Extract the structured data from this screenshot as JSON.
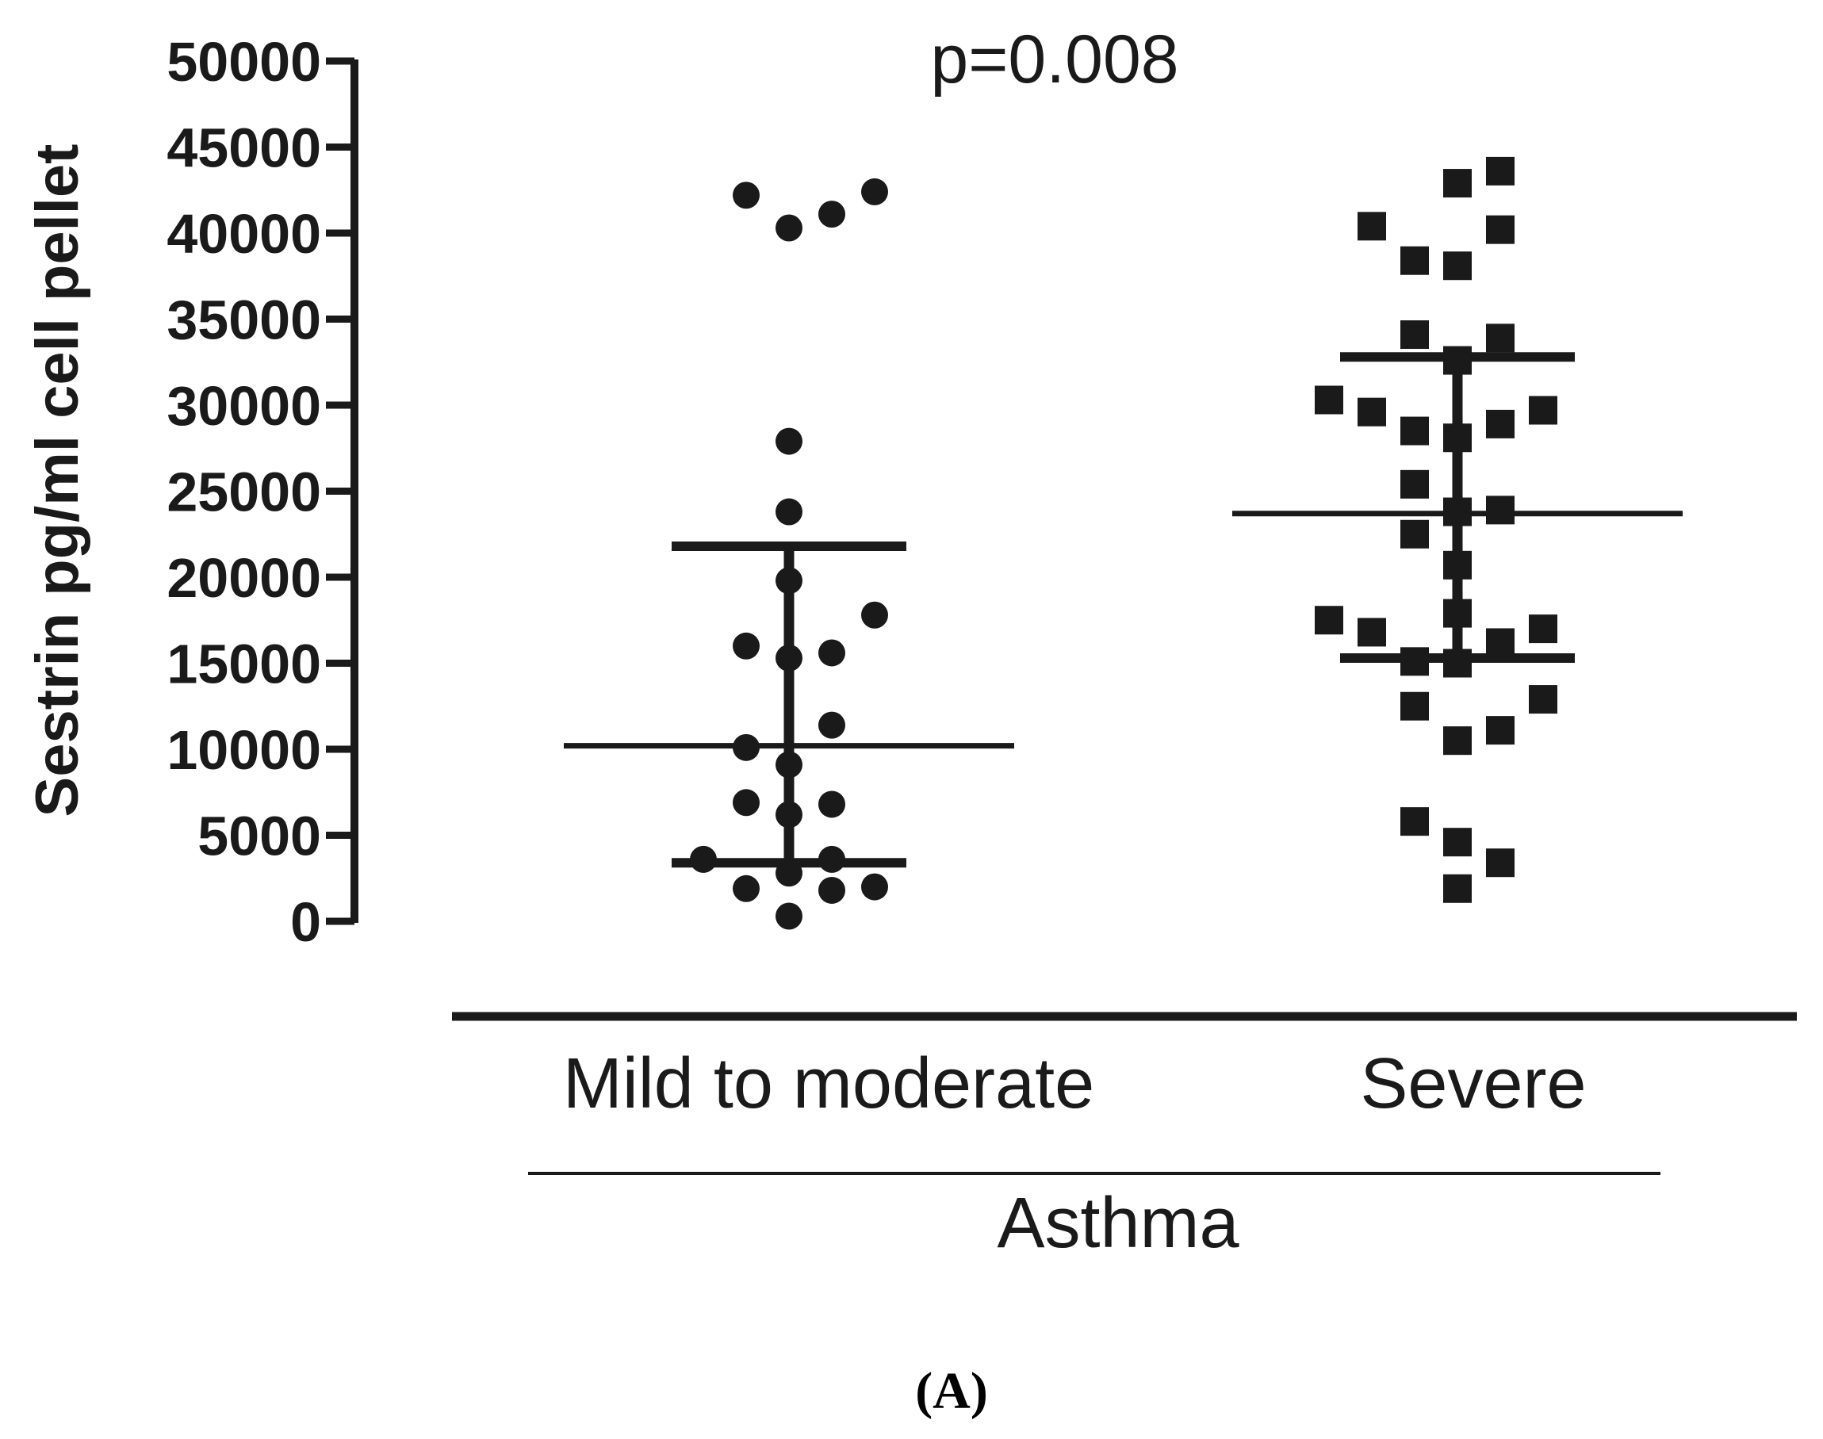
{
  "chart_data": {
    "type": "scatter",
    "title": "",
    "ylabel": "Sestrin pg/ml cell pellet",
    "xlabel": "",
    "ylim": [
      0,
      50000
    ],
    "yticks": [
      0,
      5000,
      10000,
      15000,
      20000,
      25000,
      30000,
      35000,
      40000,
      45000,
      50000
    ],
    "yticklabels": [
      "0",
      "5000",
      "10000",
      "15000",
      "20000",
      "25000",
      "30000",
      "35000",
      "40000",
      "45000",
      "50000"
    ],
    "annotation": "p=0.008",
    "categories": [
      "Mild to moderate",
      "Severe"
    ],
    "group_label": "Asthma",
    "panel_label": "(A)",
    "color": "#1a1a1a",
    "series": [
      {
        "name": "Mild to moderate",
        "marker": "circle",
        "median": 10200,
        "q1": 3400,
        "q3": 21800,
        "points": [
          {
            "value": 42200,
            "slot": -1
          },
          {
            "value": 40300,
            "slot": 0
          },
          {
            "value": 41100,
            "slot": 1
          },
          {
            "value": 42400,
            "slot": 2
          },
          {
            "value": 27900,
            "slot": 0
          },
          {
            "value": 23800,
            "slot": 0
          },
          {
            "value": 19800,
            "slot": 0
          },
          {
            "value": 17800,
            "slot": 2
          },
          {
            "value": 16000,
            "slot": -1
          },
          {
            "value": 15300,
            "slot": 0
          },
          {
            "value": 15600,
            "slot": 1
          },
          {
            "value": 11400,
            "slot": 1
          },
          {
            "value": 10100,
            "slot": -1
          },
          {
            "value": 9100,
            "slot": 0
          },
          {
            "value": 6900,
            "slot": -1
          },
          {
            "value": 6200,
            "slot": 0
          },
          {
            "value": 6800,
            "slot": 1
          },
          {
            "value": 3600,
            "slot": -2
          },
          {
            "value": 3600,
            "slot": 1
          },
          {
            "value": 2800,
            "slot": 0
          },
          {
            "value": 1900,
            "slot": -1
          },
          {
            "value": 1800,
            "slot": 1
          },
          {
            "value": 2000,
            "slot": 2
          },
          {
            "value": 300,
            "slot": 0
          }
        ]
      },
      {
        "name": "Severe",
        "marker": "square",
        "median": 23700,
        "q1": 15300,
        "q3": 32800,
        "points": [
          {
            "value": 43600,
            "slot": 1
          },
          {
            "value": 42900,
            "slot": 0
          },
          {
            "value": 40400,
            "slot": -2
          },
          {
            "value": 40200,
            "slot": 1
          },
          {
            "value": 38400,
            "slot": -1
          },
          {
            "value": 38100,
            "slot": 0
          },
          {
            "value": 34100,
            "slot": -1
          },
          {
            "value": 33900,
            "slot": 1
          },
          {
            "value": 32600,
            "slot": 0
          },
          {
            "value": 30300,
            "slot": -3
          },
          {
            "value": 29600,
            "slot": -2
          },
          {
            "value": 29700,
            "slot": 2
          },
          {
            "value": 28900,
            "slot": 1
          },
          {
            "value": 28500,
            "slot": -1
          },
          {
            "value": 28100,
            "slot": 0
          },
          {
            "value": 25400,
            "slot": -1
          },
          {
            "value": 23800,
            "slot": 0
          },
          {
            "value": 23900,
            "slot": 1
          },
          {
            "value": 22500,
            "slot": -1
          },
          {
            "value": 20700,
            "slot": 0
          },
          {
            "value": 17900,
            "slot": 0
          },
          {
            "value": 17500,
            "slot": -3
          },
          {
            "value": 17000,
            "slot": 2
          },
          {
            "value": 16800,
            "slot": -2
          },
          {
            "value": 16200,
            "slot": 1
          },
          {
            "value": 15100,
            "slot": -1
          },
          {
            "value": 15000,
            "slot": 0
          },
          {
            "value": 12900,
            "slot": 2
          },
          {
            "value": 12500,
            "slot": -1
          },
          {
            "value": 11100,
            "slot": 1
          },
          {
            "value": 10500,
            "slot": 0
          },
          {
            "value": 5800,
            "slot": -1
          },
          {
            "value": 4600,
            "slot": 0
          },
          {
            "value": 3400,
            "slot": 1
          },
          {
            "value": 1900,
            "slot": 0
          }
        ]
      }
    ]
  }
}
